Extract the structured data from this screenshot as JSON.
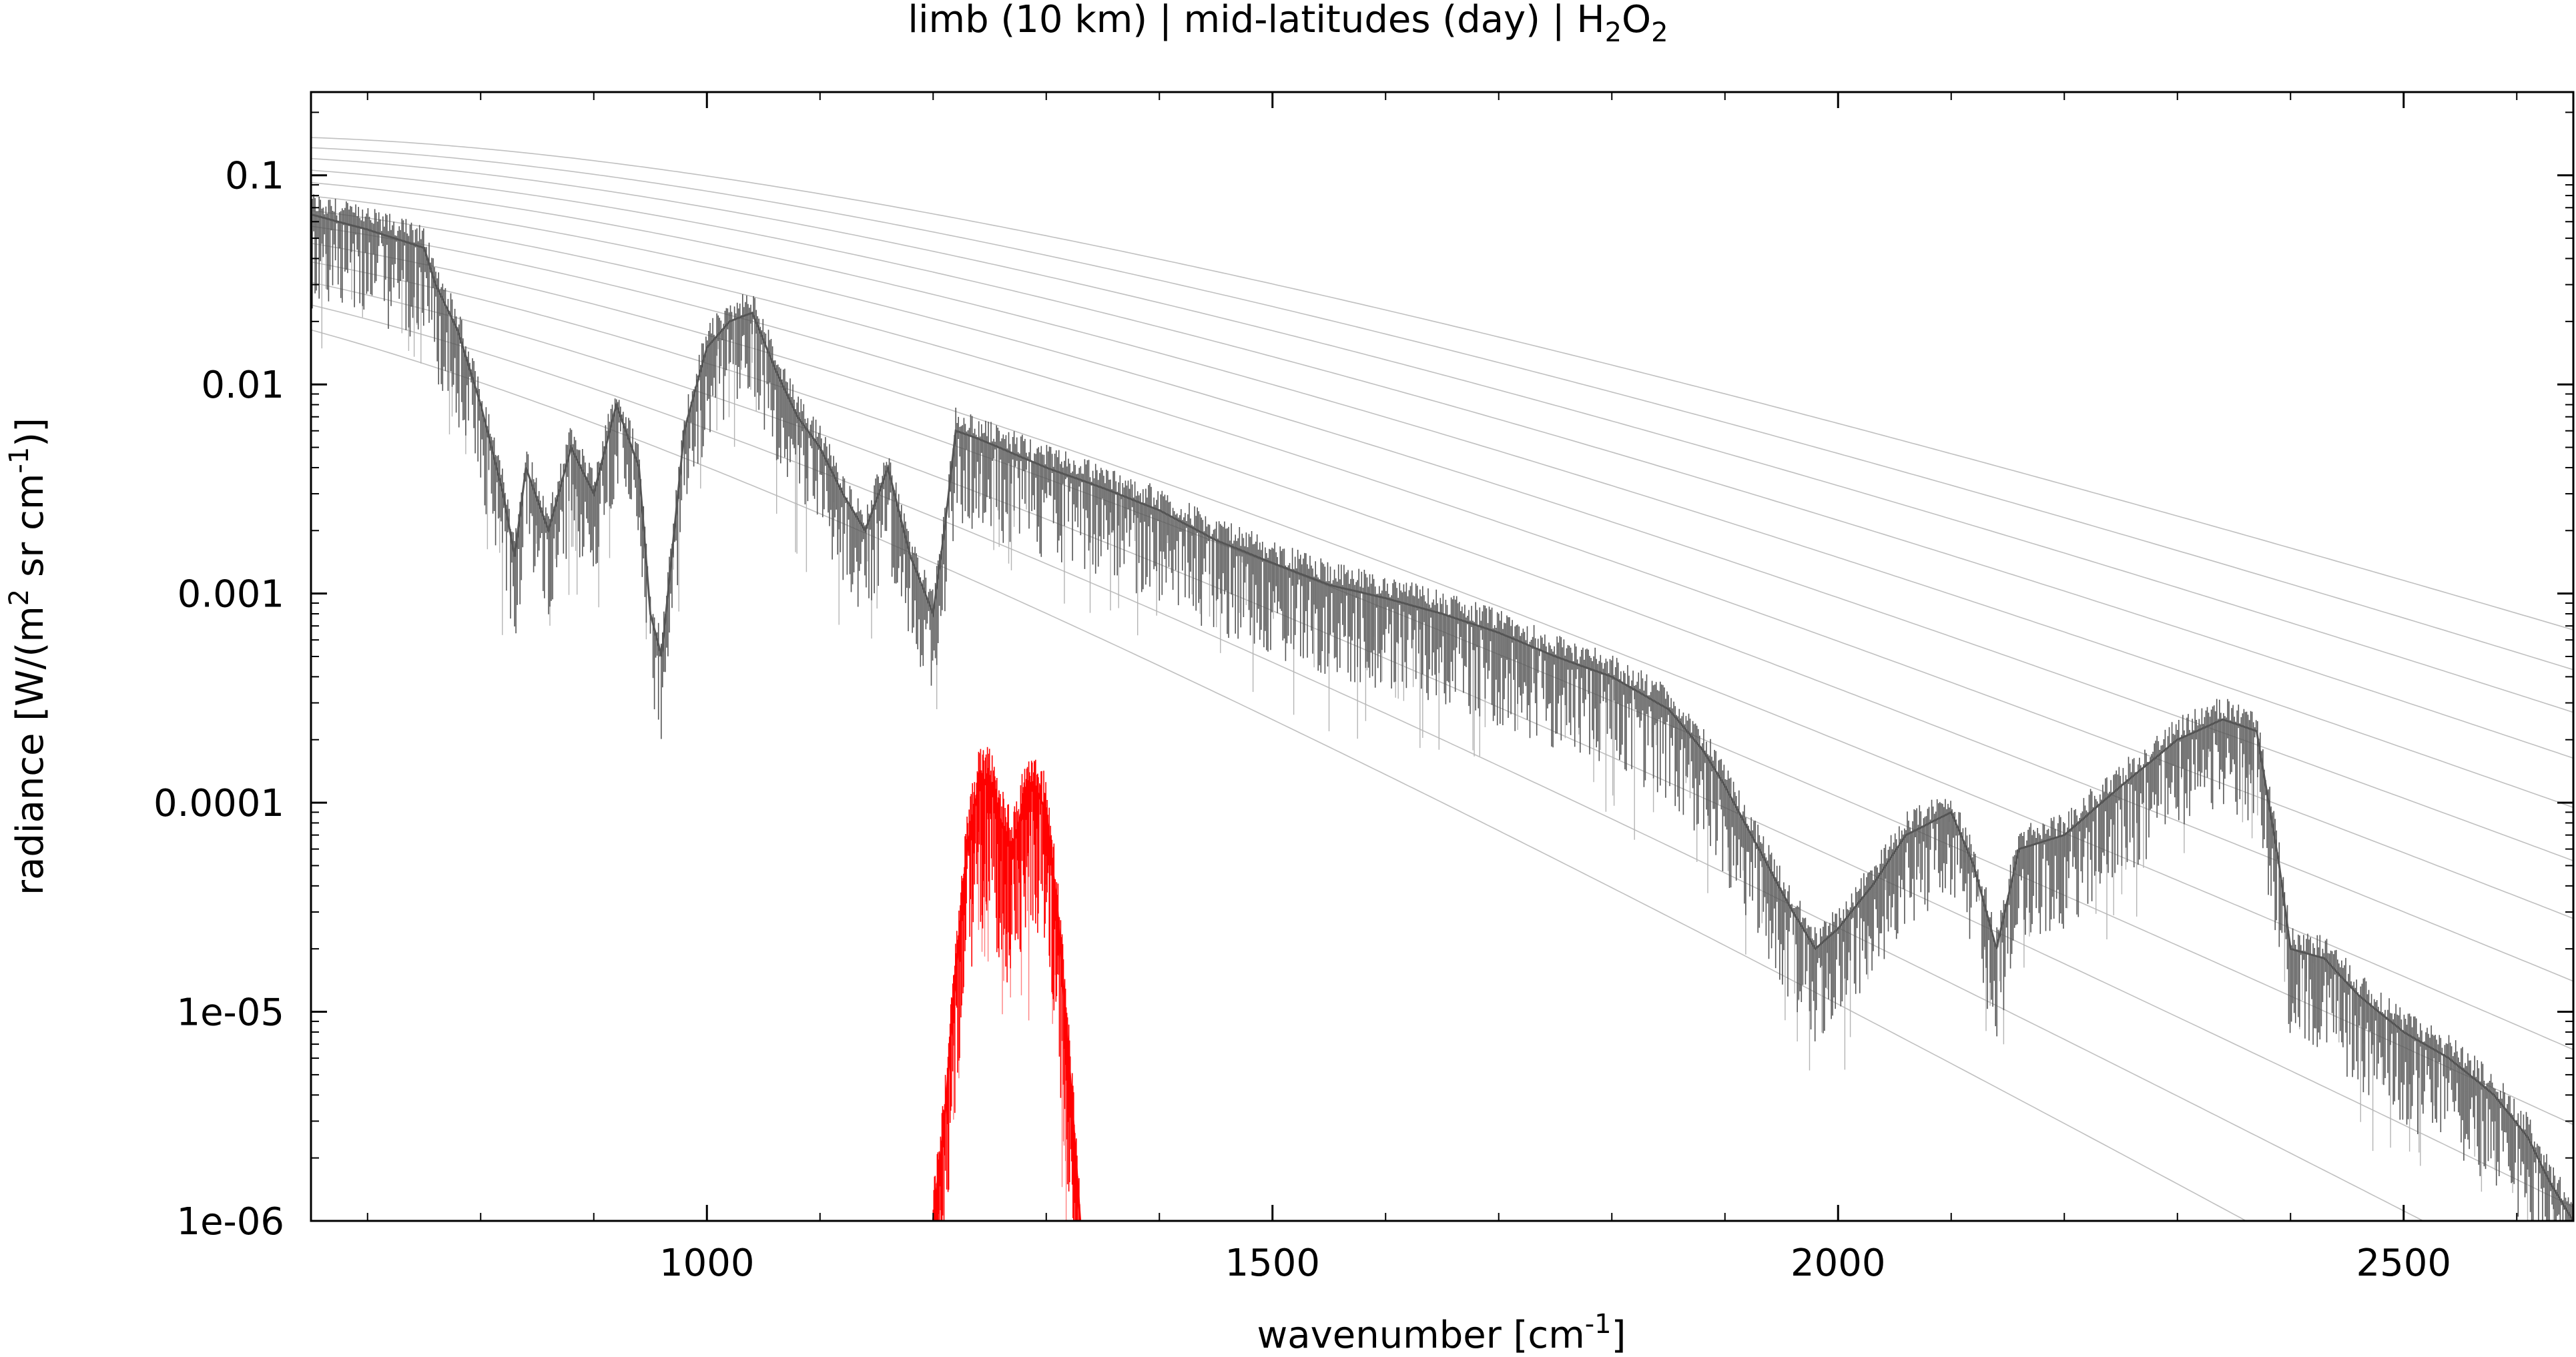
{
  "chart_data": {
    "type": "line",
    "title_parts": {
      "main": "limb (10 km) | mid-latitudes (day) | H",
      "sub1": "2",
      "mid": "O",
      "sub2": "2"
    },
    "xlabel_parts": {
      "main": "wavenumber [cm",
      "sup": "-1",
      "end": "]"
    },
    "ylabel_parts": {
      "a": "radiance [W/(m",
      "sup1": "2",
      "b": " sr cm",
      "sup2": "-1",
      "c": ")]"
    },
    "xlim": [
      650,
      2650
    ],
    "ylim": [
      1e-06,
      0.25
    ],
    "yscale": "log",
    "grid": false,
    "legend": "none",
    "x_ticks": [
      1000,
      1500,
      2000,
      2500
    ],
    "x_tick_labels": [
      "1000",
      "1500",
      "2000",
      "2500"
    ],
    "y_ticks": [
      0.1,
      0.01,
      0.001,
      0.0001,
      1e-05,
      1e-06
    ],
    "y_tick_labels": [
      "0.1",
      "0.01",
      "0.001",
      "0.0001",
      "1e-05",
      "1e-06"
    ],
    "colors": {
      "total": "#555555",
      "total_light": "#b4b4b4",
      "h2o2": "#ff0000",
      "h2o2_light": "#ff8080",
      "planck": "#c0c0c0"
    },
    "planck_temperatures_K": [
      180,
      190,
      200,
      210,
      220,
      230,
      240,
      250,
      260,
      270,
      280,
      290,
      300
    ],
    "series": [
      {
        "role": "total radiance",
        "x": [
          650,
          700,
          750,
          760,
          780,
          800,
          820,
          830,
          840,
          860,
          880,
          900,
          920,
          940,
          950,
          960,
          980,
          1000,
          1020,
          1040,
          1060,
          1080,
          1100,
          1120,
          1140,
          1160,
          1180,
          1200,
          1210,
          1220,
          1240,
          1300,
          1350,
          1400,
          1450,
          1500,
          1550,
          1600,
          1650,
          1700,
          1750,
          1800,
          1850,
          1880,
          1900,
          1930,
          1960,
          1980,
          2000,
          2030,
          2060,
          2100,
          2120,
          2140,
          2160,
          2200,
          2250,
          2300,
          2340,
          2370,
          2390,
          2400,
          2430,
          2460,
          2500,
          2540,
          2580,
          2610,
          2630,
          2650
        ],
        "y": [
          0.065,
          0.055,
          0.045,
          0.03,
          0.018,
          0.008,
          0.003,
          0.0015,
          0.004,
          0.002,
          0.005,
          0.003,
          0.008,
          0.004,
          0.0008,
          0.0005,
          0.006,
          0.015,
          0.02,
          0.022,
          0.012,
          0.007,
          0.005,
          0.003,
          0.002,
          0.004,
          0.0015,
          0.0008,
          0.002,
          0.006,
          0.0055,
          0.004,
          0.0032,
          0.0025,
          0.0018,
          0.0014,
          0.0011,
          0.00095,
          0.0008,
          0.00065,
          0.0005,
          0.0004,
          0.00028,
          0.00018,
          0.00012,
          6e-05,
          3e-05,
          2e-05,
          2.5e-05,
          4e-05,
          7e-05,
          9e-05,
          5e-05,
          2e-05,
          6e-05,
          7e-05,
          0.00012,
          0.0002,
          0.00025,
          0.00022,
          5e-05,
          2e-05,
          1.8e-05,
          1.2e-05,
          8e-06,
          6e-06,
          4e-06,
          2.5e-06,
          1.5e-06,
          1e-06
        ]
      },
      {
        "role": "H2O2 contribution",
        "x": [
          1200,
          1210,
          1220,
          1230,
          1240,
          1250,
          1260,
          1270,
          1280,
          1290,
          1300,
          1310,
          1320,
          1330
        ],
        "y": [
          1e-06,
          3e-06,
          1.5e-05,
          6e-05,
          0.00012,
          0.00013,
          8e-05,
          6e-05,
          0.0001,
          0.00012,
          9e-05,
          3e-05,
          6e-06,
          1e-06
        ]
      }
    ]
  }
}
